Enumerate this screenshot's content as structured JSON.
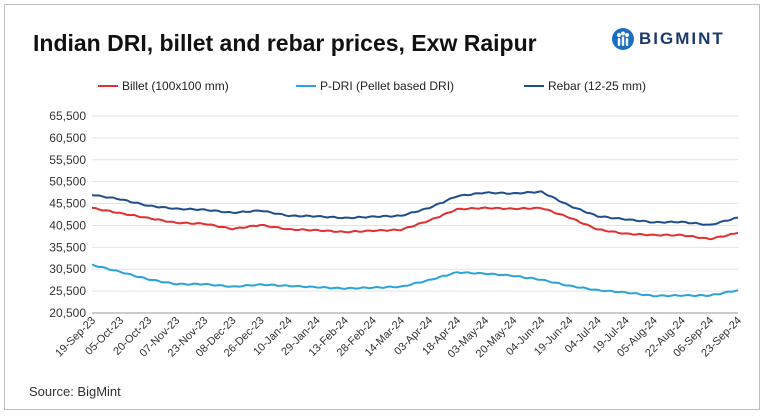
{
  "title": "Indian DRI, billet and rebar prices, Exw Raipur",
  "brand": {
    "name": "BIGMINT",
    "icon": "people-logo-icon",
    "color": "#1b3a6b"
  },
  "source": "Source: BigMint",
  "chart_data": {
    "type": "line",
    "title": "Indian DRI, billet and rebar prices, Exw Raipur",
    "xlabel": "",
    "ylabel": "",
    "ylim": [
      20500,
      65500
    ],
    "yticks": [
      20500,
      25500,
      30500,
      35500,
      40500,
      45500,
      50500,
      55500,
      60500,
      65500
    ],
    "ytick_labels": [
      "20,500",
      "25,500",
      "30,500",
      "35,500",
      "40,500",
      "45,500",
      "50,500",
      "55,500",
      "60,500",
      "65,500"
    ],
    "x": [
      "19-Sep-23",
      "05-Oct-23",
      "20-Oct-23",
      "07-Nov-23",
      "23-Nov-23",
      "08-Dec-23",
      "26-Dec-23",
      "10-Jan-24",
      "29-Jan-24",
      "13-Feb-24",
      "28-Feb-24",
      "14-Mar-24",
      "03-Apr-24",
      "18-Apr-24",
      "03-May-24",
      "20-May-24",
      "04-Jun-24",
      "19-Jun-24",
      "04-Jul-24",
      "19-Jul-24",
      "05-Aug-24",
      "22-Aug-24",
      "06-Sep-24",
      "23-Sep-24"
    ],
    "grid": "horizontal",
    "legend_position": "top",
    "series": [
      {
        "name": "Billet (100x100 mm)",
        "color": "#e03131",
        "values": [
          44500,
          43300,
          42200,
          41100,
          40900,
          39700,
          40600,
          39600,
          39400,
          39000,
          39300,
          39500,
          41600,
          44200,
          44500,
          44300,
          44500,
          42300,
          39600,
          38600,
          38300,
          38300,
          37400,
          38800
        ]
      },
      {
        "name": "P-DRI (Pellet based DRI)",
        "color": "#29a3d9",
        "values": [
          31500,
          29900,
          28200,
          27100,
          27100,
          26500,
          27000,
          26700,
          26400,
          26100,
          26300,
          26500,
          28000,
          29800,
          29500,
          29000,
          28100,
          26700,
          25700,
          25200,
          24400,
          24500,
          24500,
          25700
        ]
      },
      {
        "name": "Rebar (12-25 mm)",
        "color": "#1f4e8c",
        "values": [
          47500,
          46500,
          45000,
          44300,
          44100,
          43400,
          43900,
          42700,
          42600,
          42200,
          42500,
          42700,
          44500,
          47200,
          48000,
          47800,
          48200,
          45000,
          42600,
          41900,
          41200,
          41300,
          40600,
          42300
        ]
      }
    ]
  }
}
